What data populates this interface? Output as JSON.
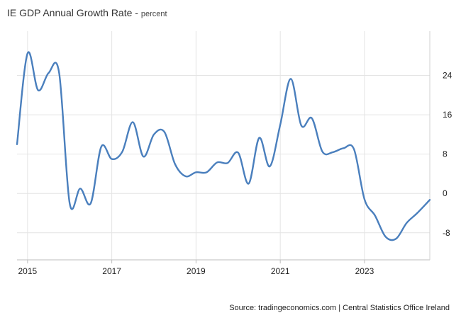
{
  "header": {
    "title": "IE GDP Annual Growth Rate",
    "unit": "percent"
  },
  "footer": {
    "source": "Source: tradingeconomics.com | Central Statistics Office Ireland"
  },
  "chart_data": {
    "type": "line",
    "title": "IE GDP Annual Growth Rate",
    "ylabel": "percent",
    "xlabel": "",
    "ylim": [
      -13.5,
      33
    ],
    "xlim": [
      2014.75,
      2024.55
    ],
    "y_ticks": [
      24,
      16,
      8,
      0,
      -8
    ],
    "x_ticks": [
      {
        "value": 2015,
        "label": "2015"
      },
      {
        "value": 2017,
        "label": "2017"
      },
      {
        "value": 2019,
        "label": "2019"
      },
      {
        "value": 2021,
        "label": "2021"
      },
      {
        "value": 2023,
        "label": "2023"
      }
    ],
    "grid": true,
    "line_color": "#4a7fbd",
    "series": [
      {
        "name": "GDP Annual Growth Rate",
        "x": [
          2014.75,
          2015.0,
          2015.25,
          2015.5,
          2015.75,
          2016.0,
          2016.25,
          2016.5,
          2016.75,
          2017.0,
          2017.25,
          2017.5,
          2017.75,
          2018.0,
          2018.25,
          2018.5,
          2018.75,
          2019.0,
          2019.25,
          2019.5,
          2019.75,
          2020.0,
          2020.25,
          2020.5,
          2020.75,
          2021.0,
          2021.25,
          2021.5,
          2021.75,
          2022.0,
          2022.25,
          2022.5,
          2022.75,
          2023.0,
          2023.25,
          2023.5,
          2023.75,
          2024.0,
          2024.25,
          2024.55
        ],
        "values": [
          10,
          28.5,
          21,
          24.5,
          24.5,
          -2,
          1,
          -2,
          9.5,
          7,
          8.5,
          14.5,
          7.5,
          12,
          12.5,
          6,
          3.5,
          4.3,
          4.3,
          6.3,
          6.2,
          8.3,
          2,
          11.3,
          5.5,
          14,
          23.3,
          13.8,
          15.3,
          8.5,
          8.4,
          9.2,
          9,
          -1.2,
          -4.5,
          -8.8,
          -9.2,
          -6,
          -4,
          -1.3
        ]
      }
    ]
  }
}
